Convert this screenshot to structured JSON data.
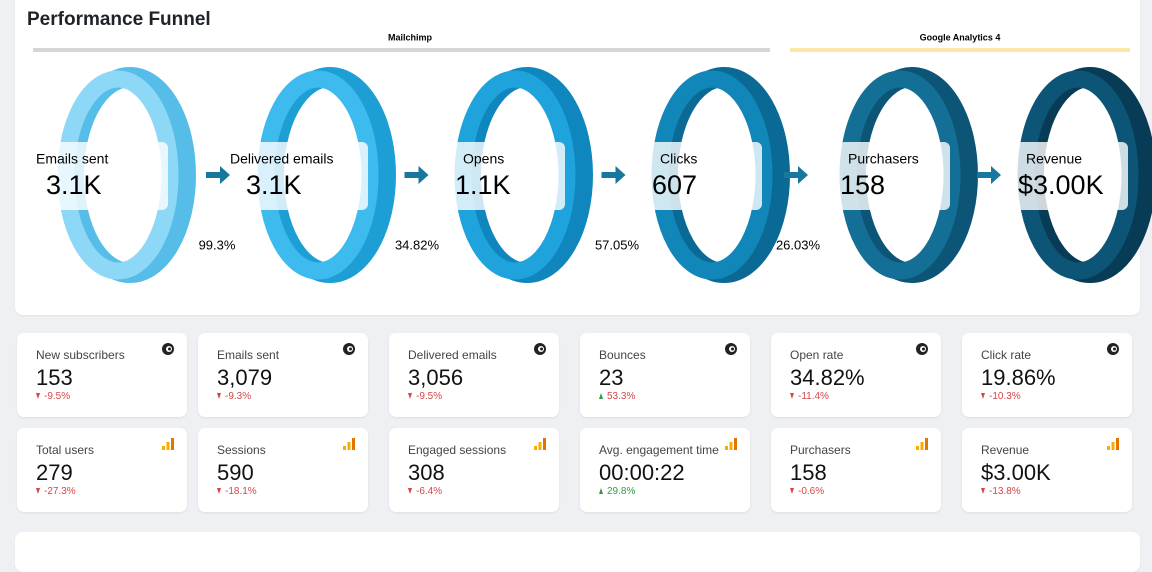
{
  "funnel": {
    "title": "Performance Funnel",
    "sources": [
      "Mailchimp",
      "Google Analytics 4"
    ],
    "stages": [
      {
        "label": "Emails sent",
        "value": "3.1K"
      },
      {
        "label": "Delivered emails",
        "value": "3.1K"
      },
      {
        "label": "Opens",
        "value": "1.1K"
      },
      {
        "label": "Clicks",
        "value": "607"
      },
      {
        "label": "Purchasers",
        "value": "158"
      },
      {
        "label": "Revenue",
        "value": "$3.00K"
      }
    ],
    "rates": [
      "99.3%",
      "34.82%",
      "57.05%",
      "26.03%"
    ]
  },
  "kpis": [
    [
      {
        "label": "New subscribers",
        "value": "153",
        "change": "-9.5%",
        "trend": "down"
      },
      {
        "label": "Emails sent",
        "value": "3,079",
        "change": "-9.3%",
        "trend": "down"
      },
      {
        "label": "Delivered emails",
        "value": "3,056",
        "change": "-9.5%",
        "trend": "down"
      },
      {
        "label": "Bounces",
        "value": "23",
        "change": "53.3%",
        "trend": "up-bad"
      },
      {
        "label": "Open rate",
        "value": "34.82%",
        "change": "-11.4%",
        "trend": "down"
      },
      {
        "label": "Click rate",
        "value": "19.86%",
        "change": "-10.3%",
        "trend": "down"
      }
    ],
    [
      {
        "label": "Total users",
        "value": "279",
        "change": "-27.3%",
        "trend": "down"
      },
      {
        "label": "Sessions",
        "value": "590",
        "change": "-18.1%",
        "trend": "down"
      },
      {
        "label": "Engaged sessions",
        "value": "308",
        "change": "-6.4%",
        "trend": "down"
      },
      {
        "label": "Avg. engagement time",
        "value": "00:00:22",
        "change": "29.8%",
        "trend": "up"
      },
      {
        "label": "Purchasers",
        "value": "158",
        "change": "-0.6%",
        "trend": "down"
      },
      {
        "label": "Revenue",
        "value": "$3.00K",
        "change": "-13.8%",
        "trend": "down"
      }
    ]
  ]
}
